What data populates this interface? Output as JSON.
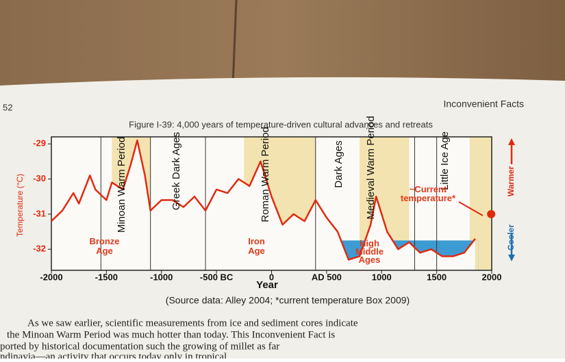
{
  "page": {
    "page_number": "52",
    "running_head": "Inconvenient Facts",
    "caption": "(Source data: Alley 2004; *current temperature Box 2009)",
    "body_lines": [
      "As we saw earlier, scientific measurements from ice and sediment cores indicate",
      "the Minoan Warm Period was much hotter than today. This Inconvenient Fact is",
      "ported by historical documentation such the growing of millet as far",
      "ndinavia—an activity that occurs today only in tropical"
    ]
  },
  "chart_data": {
    "type": "line",
    "title": "Figure I-39: 4,000 years of temperature-driven cultural advances and retreats",
    "x_label": "Year",
    "y_label": "Temperature (°C)",
    "warmer_label": "Warmer",
    "cooler_label": "Cooler",
    "period_labels": [
      "Minoan Warm Period",
      "Greek Dark Ages",
      "Roman Warm Period",
      "Dark Ages",
      "Medieval Warm Period",
      "Little Ice Age"
    ],
    "age_labels": [
      "Bronze Age",
      "Iron Age",
      "High Middle Ages"
    ],
    "current_label": "~Current temperature*",
    "xlim": [
      -2000,
      2000
    ],
    "ylim": [
      -32.6,
      -28.8
    ],
    "xticks": [
      -2000,
      -1500,
      -1000,
      {
        "value": -500,
        "label": "-500 BC"
      },
      0,
      {
        "value": 500,
        "label": "AD 500"
      },
      1000,
      1500,
      2000
    ],
    "yticks": [
      -29,
      -30,
      -31,
      -32
    ],
    "warm_bands": [
      [
        -1450,
        -1100
      ],
      [
        -250,
        400
      ],
      [
        800,
        1250
      ],
      [
        1800,
        2000
      ]
    ],
    "dividers": [
      -1550,
      -1100,
      -600,
      400,
      1300,
      1500
    ],
    "cool_band": {
      "x": [
        550,
        1880
      ],
      "y": -31.75,
      "color": "#3d9bd3"
    },
    "series": [
      {
        "color": "#e02a10",
        "x": [
          -2000,
          -1900,
          -1800,
          -1750,
          -1650,
          -1600,
          -1500,
          -1450,
          -1350,
          -1280,
          -1220,
          -1150,
          -1100,
          -1000,
          -900,
          -800,
          -700,
          -600,
          -500,
          -400,
          -300,
          -200,
          -100,
          0,
          100,
          200,
          300,
          400,
          500,
          600,
          700,
          800,
          900,
          950,
          1050,
          1150,
          1250,
          1350,
          1450,
          1550,
          1650,
          1750,
          1850
        ],
        "values": [
          -31.2,
          -30.9,
          -30.4,
          -30.7,
          -29.9,
          -30.3,
          -30.6,
          -30.1,
          -30.3,
          -29.6,
          -28.9,
          -29.9,
          -30.9,
          -30.6,
          -30.6,
          -30.8,
          -30.5,
          -30.9,
          -30.3,
          -30.4,
          -30.0,
          -30.2,
          -29.5,
          -30.5,
          -31.3,
          -31.0,
          -31.2,
          -30.6,
          -31.1,
          -31.5,
          -32.3,
          -32.2,
          -31.3,
          -30.5,
          -31.5,
          -32.0,
          -31.8,
          -32.1,
          -32.0,
          -32.2,
          -32.2,
          -32.1,
          -31.7
        ]
      }
    ],
    "current": {
      "x": 1995,
      "value": -31.0,
      "color": "#e02a10"
    },
    "band_color": "#f3e3b0"
  }
}
